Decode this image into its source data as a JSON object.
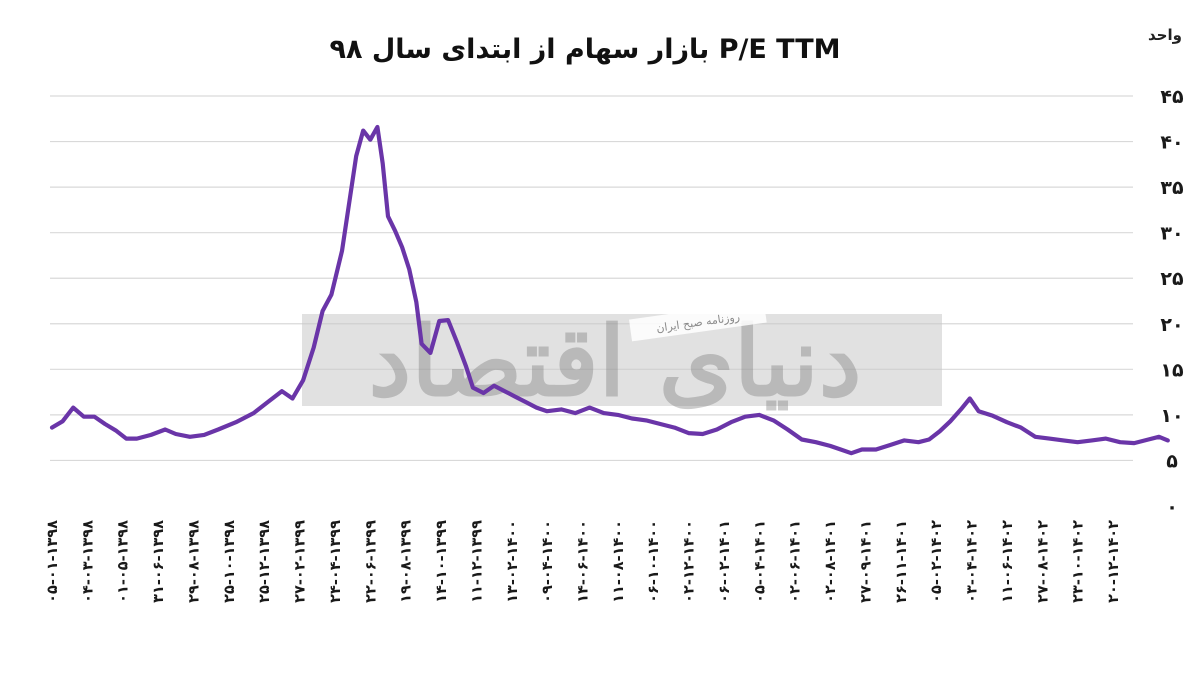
{
  "chart_data": {
    "type": "line",
    "title": "P/E TTM بازار سهام از ابتدای سال ۹۸",
    "unit_label": "واحد",
    "ylim": [
      0,
      45
    ],
    "y_ticks": [
      "۰",
      "۵",
      "۱۰",
      "۱۵",
      "۲۰",
      "۲۵",
      "۳۰",
      "۳۵",
      "۴۰",
      "۴۵"
    ],
    "grid": true,
    "x_tick_labels": [
      "۰۵-۰۱-۱۳۹۸",
      "۰۴-۰۳-۱۳۹۸",
      "۰۱-۰۵-۱۳۹۸",
      "۳۱-۰۶-۱۳۹۸",
      "۲۹-۰۸-۱۳۹۸",
      "۲۵-۱۰-۱۳۹۸",
      "۲۵-۱۲-۱۳۹۸",
      "۲۷-۰۲-۱۳۹۹",
      "۲۴-۰۴-۱۳۹۹",
      "۲۲-۰۶-۱۳۹۹",
      "۱۹-۰۸-۱۳۹۹",
      "۱۴-۱۰-۱۳۹۹",
      "۱۱-۱۲-۱۳۹۹",
      "۱۳-۰۲-۱۴۰۰",
      "۰۹-۰۴-۱۴۰۰",
      "۱۴-۰۶-۱۴۰۰",
      "۱۱-۰۸-۱۴۰۰",
      "۰۶-۱۰-۱۴۰۰",
      "۰۲-۱۲-۱۴۰۰",
      "۰۶-۰۲-۱۴۰۱",
      "۰۵-۰۴-۱۴۰۱",
      "۰۲-۰۶-۱۴۰۱",
      "۰۲-۰۸-۱۴۰۱",
      "۲۷-۰۹-۱۴۰۱",
      "۲۶-۱۱-۱۴۰۱",
      "۰۵-۰۲-۱۴۰۲",
      "۰۳-۰۴-۱۴۰۲",
      "۱۱-۰۶-۱۴۰۲",
      "۲۷-۰۸-۱۴۰۲",
      "۲۳-۱۰-۱۴۰۲",
      "۲۰-۱۲-۱۴۰۲"
    ],
    "series": [
      {
        "color": "#6a35a8",
        "values": [
          [
            0,
            8.6
          ],
          [
            0.3,
            9.3
          ],
          [
            0.6,
            10.8
          ],
          [
            0.9,
            9.8
          ],
          [
            1.2,
            9.8
          ],
          [
            1.5,
            9.0
          ],
          [
            1.8,
            8.3
          ],
          [
            2.1,
            7.4
          ],
          [
            2.4,
            7.4
          ],
          [
            2.8,
            7.8
          ],
          [
            3.2,
            8.4
          ],
          [
            3.5,
            7.9
          ],
          [
            3.9,
            7.6
          ],
          [
            4.3,
            7.8
          ],
          [
            4.7,
            8.4
          ],
          [
            5.2,
            9.2
          ],
          [
            5.7,
            10.2
          ],
          [
            6.1,
            11.4
          ],
          [
            6.5,
            12.6
          ],
          [
            6.8,
            11.8
          ],
          [
            7.1,
            13.8
          ],
          [
            7.4,
            17.4
          ],
          [
            7.65,
            21.4
          ],
          [
            7.9,
            23.2
          ],
          [
            8.2,
            28.0
          ],
          [
            8.4,
            33.2
          ],
          [
            8.6,
            38.4
          ],
          [
            8.8,
            41.2
          ],
          [
            9.0,
            40.2
          ],
          [
            9.2,
            41.6
          ],
          [
            9.35,
            37.6
          ],
          [
            9.5,
            31.8
          ],
          [
            9.7,
            30.2
          ],
          [
            9.9,
            28.4
          ],
          [
            10.1,
            26.0
          ],
          [
            10.3,
            22.4
          ],
          [
            10.45,
            17.8
          ],
          [
            10.7,
            16.8
          ],
          [
            10.95,
            20.3
          ],
          [
            11.2,
            20.4
          ],
          [
            11.45,
            18.0
          ],
          [
            11.7,
            15.4
          ],
          [
            11.9,
            13.0
          ],
          [
            12.2,
            12.4
          ],
          [
            12.5,
            13.2
          ],
          [
            12.8,
            12.6
          ],
          [
            13.1,
            12.0
          ],
          [
            13.4,
            11.4
          ],
          [
            13.7,
            10.8
          ],
          [
            14.0,
            10.4
          ],
          [
            14.4,
            10.6
          ],
          [
            14.8,
            10.2
          ],
          [
            15.2,
            10.8
          ],
          [
            15.6,
            10.2
          ],
          [
            16.0,
            10.0
          ],
          [
            16.4,
            9.6
          ],
          [
            16.8,
            9.4
          ],
          [
            17.2,
            9.0
          ],
          [
            17.6,
            8.6
          ],
          [
            18.0,
            8.0
          ],
          [
            18.4,
            7.9
          ],
          [
            18.8,
            8.4
          ],
          [
            19.2,
            9.2
          ],
          [
            19.6,
            9.8
          ],
          [
            20.0,
            10.0
          ],
          [
            20.4,
            9.4
          ],
          [
            20.8,
            8.4
          ],
          [
            21.2,
            7.3
          ],
          [
            21.6,
            7.0
          ],
          [
            22.0,
            6.6
          ],
          [
            22.3,
            6.2
          ],
          [
            22.6,
            5.8
          ],
          [
            22.9,
            6.2
          ],
          [
            23.3,
            6.2
          ],
          [
            23.7,
            6.7
          ],
          [
            24.1,
            7.2
          ],
          [
            24.5,
            7.0
          ],
          [
            24.8,
            7.3
          ],
          [
            25.1,
            8.2
          ],
          [
            25.4,
            9.3
          ],
          [
            25.7,
            10.6
          ],
          [
            25.95,
            11.8
          ],
          [
            26.2,
            10.4
          ],
          [
            26.6,
            9.9
          ],
          [
            27.0,
            9.2
          ],
          [
            27.4,
            8.6
          ],
          [
            27.8,
            7.6
          ],
          [
            28.2,
            7.4
          ],
          [
            28.6,
            7.2
          ],
          [
            29.0,
            7.0
          ],
          [
            29.4,
            7.2
          ],
          [
            29.8,
            7.4
          ],
          [
            30.2,
            7.0
          ],
          [
            30.6,
            6.9
          ],
          [
            31.0,
            7.3
          ],
          [
            31.3,
            7.6
          ],
          [
            31.55,
            7.2
          ]
        ]
      }
    ]
  },
  "watermark": {
    "main": "دنیای اقتصاد",
    "sub": "روزنامه صبح ایران"
  }
}
